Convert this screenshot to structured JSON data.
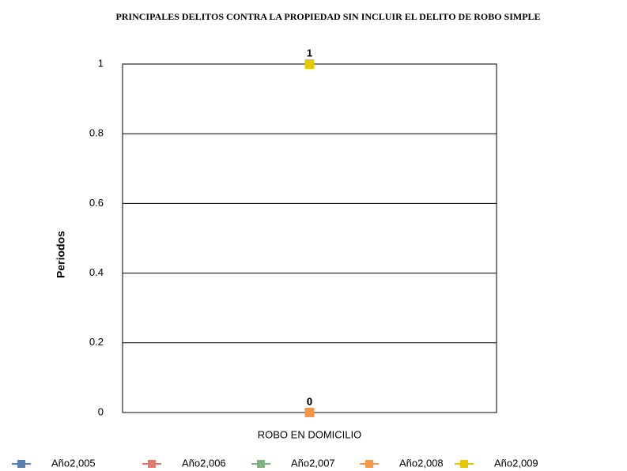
{
  "chart_data": {
    "type": "line",
    "title": "PRINCIPALES DELITOS CONTRA LA PROPIEDAD SIN  INCLUIR EL DELITO DE ROBO SIMPLE",
    "y_label": "Periodos",
    "categories": [
      "ROBO EN DOMICILIO"
    ],
    "series": [
      {
        "name": "Año2,005",
        "color": "#5b7fae",
        "values": [
          0
        ]
      },
      {
        "name": "Año2,006",
        "color": "#e0796f",
        "values": [
          0
        ]
      },
      {
        "name": "Año2,007",
        "color": "#7fb27f",
        "values": [
          0
        ]
      },
      {
        "name": "Año2,008",
        "color": "#f79646",
        "values": [
          0
        ]
      },
      {
        "name": "Año2,009",
        "color": "#e6c800",
        "values": [
          1
        ]
      }
    ],
    "ylim": [
      0,
      1
    ],
    "yticks": [
      0,
      0.2,
      0.4,
      0.6,
      0.8,
      1
    ],
    "grid": true,
    "legend": "bottom"
  }
}
